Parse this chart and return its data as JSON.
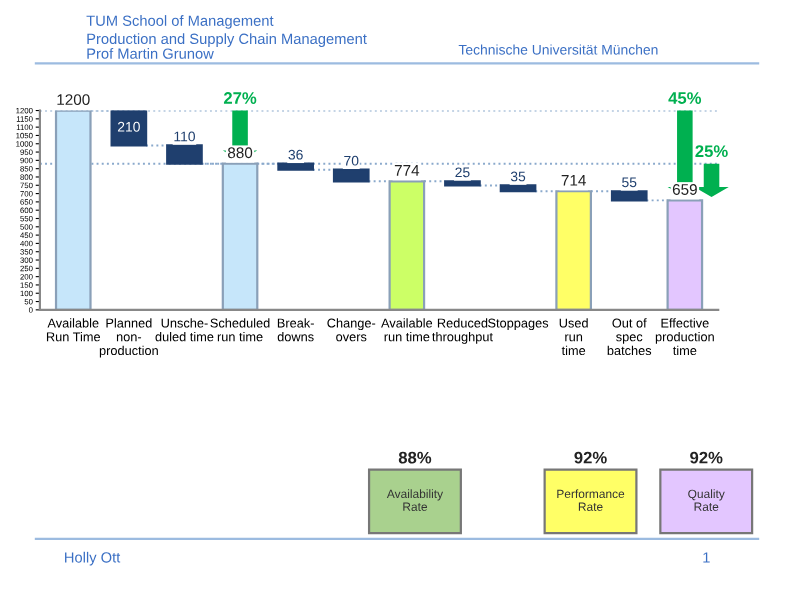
{
  "chart_data": {
    "type": "bar",
    "title": "TUM School of Management",
    "subtitle": "Production and Supply Chain Management\nProf Martin Grunow",
    "categories": [
      "Available\nRun Time",
      "Planned\nnon-\nproduction",
      "Unsche-\nduled time",
      "Scheduled\nrun time",
      "Break-\ndowns",
      "Change-\novers",
      "Available\nrun time",
      "Reduced\nthroughput",
      "Stoppages",
      "Used\nrun\ntime",
      "Out of\nspec\nbatches",
      "Effective\nproduction\ntime"
    ],
    "values": [
      1200,
      210,
      110,
      880,
      36,
      70,
      774,
      25,
      35,
      714,
      55,
      659
    ],
    "base": [
      0,
      990,
      880,
      0,
      844,
      774,
      0,
      749,
      714,
      0,
      659,
      0
    ],
    "colors": [
      "#c6e6fa",
      "#1f3f6e",
      "#1f3f6e",
      "#c6e6fa",
      "#1f3f6e",
      "#1f3f6e",
      "#ccff66",
      "#1f3f6e",
      "#1f3f6e",
      "#ffff66",
      "#1f3f6e",
      "#e3c6ff"
    ],
    "data_labels": true,
    "ylim": [
      0,
      1200
    ],
    "yticks": [
      0,
      50,
      100,
      150,
      200,
      250,
      300,
      350,
      400,
      450,
      500,
      550,
      600,
      650,
      700,
      750,
      800,
      850,
      900,
      950,
      1000,
      1050,
      1100,
      1150,
      1200
    ],
    "grid": false,
    "ref_lines": [
      {
        "axis": "y",
        "value": 1200,
        "color": "#8aa9cc",
        "line_style": "dotted"
      },
      {
        "axis": "y",
        "value": 880,
        "color": "#8aa9cc",
        "line_style": "dotted"
      }
    ],
    "annotations": [
      {
        "text": "27%",
        "x": "Scheduled\nrun time",
        "y": 1200
      },
      {
        "text": "45%",
        "x": "Effective\nproduction\ntime",
        "y": 1200
      },
      {
        "text": "25%",
        "x": "Effective\nproduction\ntime",
        "y": 880
      },
      "88%",
      "Availability\nRate",
      "92%",
      "Performance\nRate",
      "92%",
      "Quality\nRate",
      "Technische Universität München",
      "Holly Ott",
      "1"
    ]
  }
}
